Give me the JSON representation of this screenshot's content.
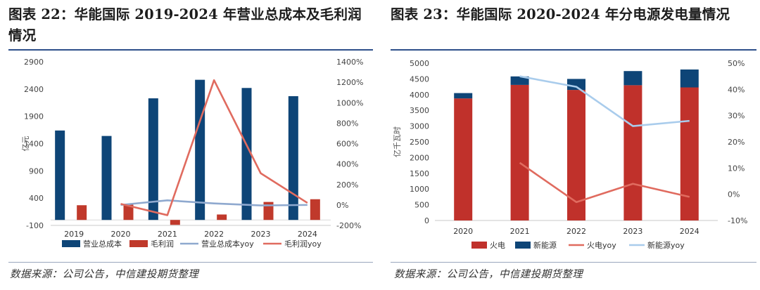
{
  "left": {
    "title": "图表 22：华能国际 2019-2024 年营业总成本及毛利润情况",
    "source": "数据来源：公司公告，中信建投期货整理",
    "colors": {
      "cost": "#0e4577",
      "profit": "#c0392b",
      "cost_yoy": "#8fa9cf",
      "profit_yoy": "#e06b5f"
    }
  },
  "right": {
    "title": "图表 23：华能国际 2020-2024 年分电源发电量情况",
    "source": "数据来源：公司公告，中信建投期货整理",
    "colors": {
      "thermal": "#c0312b",
      "renewable": "#0e4577",
      "thermal_yoy": "#e06b5f",
      "renewable_yoy": "#a9ccec"
    }
  },
  "chart_data": [
    {
      "type": "bar",
      "categories": [
        "2019",
        "2020",
        "2021",
        "2022",
        "2023",
        "2024"
      ],
      "ylabel": "亿元",
      "ylim": [
        -100,
        2900
      ],
      "yticks": [
        -100,
        400,
        900,
        1400,
        1900,
        2400,
        2900
      ],
      "y2lim": [
        -200,
        1400
      ],
      "y2ticks": [
        "-200%",
        "0%",
        "200%",
        "400%",
        "600%",
        "800%",
        "1000%",
        "1200%",
        "1400%"
      ],
      "y2tick_values": [
        -200,
        0,
        200,
        400,
        600,
        800,
        1000,
        1200,
        1400
      ],
      "legend_position": "bottom",
      "series": [
        {
          "name": "营业总成本",
          "kind": "bar",
          "axis": "left",
          "values": [
            1640,
            1540,
            2230,
            2570,
            2420,
            2270
          ]
        },
        {
          "name": "毛利润",
          "kind": "bar",
          "axis": "left",
          "values": [
            270,
            280,
            -90,
            100,
            330,
            380
          ]
        },
        {
          "name": "营业总成本yoy",
          "kind": "line",
          "axis": "right",
          "values": [
            null,
            0,
            45,
            15,
            -5,
            0
          ]
        },
        {
          "name": "毛利润yoy",
          "kind": "line",
          "axis": "right",
          "values": [
            null,
            10,
            -100,
            1220,
            310,
            20
          ]
        }
      ]
    },
    {
      "type": "bar",
      "stacked": true,
      "categories": [
        "2020",
        "2021",
        "2022",
        "2023",
        "2024"
      ],
      "ylabel": "亿千瓦时",
      "ylim": [
        0,
        5000
      ],
      "yticks": [
        0,
        500,
        1000,
        1500,
        2000,
        2500,
        3000,
        3500,
        4000,
        4500,
        5000
      ],
      "y2lim": [
        -10,
        50
      ],
      "y2ticks": [
        "-10%",
        "0%",
        "10%",
        "20%",
        "30%",
        "40%",
        "50%"
      ],
      "y2tick_values": [
        -10,
        0,
        10,
        20,
        30,
        40,
        50
      ],
      "legend_position": "bottom",
      "series": [
        {
          "name": "火电",
          "kind": "bar",
          "axis": "left",
          "values": [
            3880,
            4310,
            4150,
            4300,
            4230
          ]
        },
        {
          "name": "新能源",
          "kind": "bar",
          "axis": "left",
          "values": [
            170,
            270,
            350,
            450,
            570
          ]
        },
        {
          "name": "火电yoy",
          "kind": "line",
          "axis": "right",
          "values": [
            null,
            12,
            -3,
            4,
            -1
          ]
        },
        {
          "name": "新能源yoy",
          "kind": "line",
          "axis": "right",
          "values": [
            null,
            45,
            41,
            26,
            28
          ]
        }
      ]
    }
  ]
}
